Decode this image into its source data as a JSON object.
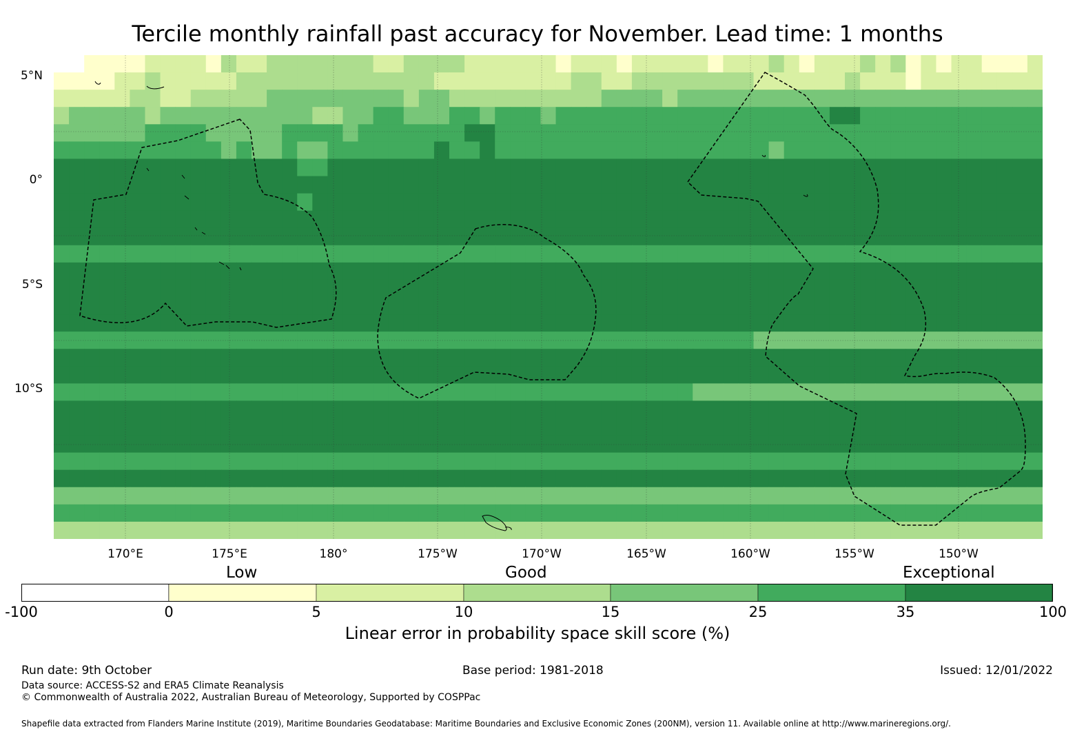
{
  "title": "Tercile monthly rainfall past accuracy for November. Lead time: 1 months",
  "map": {
    "lat_labels": [
      "5°N",
      "0°",
      "5°S",
      "10°S"
    ],
    "lon_labels": [
      "170°E",
      "175°E",
      "180°",
      "175°W",
      "170°W",
      "165°W",
      "160°W",
      "155°W",
      "150°W"
    ],
    "field_description_rows": [
      "00111122221322333333322333322222212221222221222321222323121221112",
      "11112232222233333333333332222222223322333333332222223222122222222",
      "22222332233333444444444344333333333344443444444444444444444444444",
      "34444434444444444334455444554555455555555555555555566555555555555",
      "44444455554444455554555555566555555555555555555555555555555555555",
      "55555555555454454455555556556555555555555555555455555555555555555",
      "66666666666666665566666666666666666666666666666666666666666666666",
      "66666666666666666666666666666666666666666666666666666666666666666",
      "66666666666666665666666666666666666666666666666666666666666666666",
      "66666666666666666666666666666666666666666666666666666666666666666",
      "66666666666666666666666666666666666666666666666666666666666666666",
      "55555555555555555555555555555555555555555555555555555555555555555",
      "66666666666666666666666666666666666666666666666666666666666666666",
      "66666666666666666666666666666666666666666666666666666666666666666",
      "66666666666666666666666666666666666666666666666666666666666666666",
      "66666666666666666666666666666666666666666666666666666666666666666",
      "55555555555555555555555555555555555555555555554444444444444444444",
      "66666666666666666666666666666666666666666666666666666666666666666",
      "66666666666666666666666666666666666666666666666666666666666666666",
      "55555555555555555555555555555555555555555544444444444444444444444",
      "66666666666666666666666666666666666666666666666666666666666666666",
      "66666666666666666666666666666666666666666666666666666666666666666",
      "66666666666666666666666666666666666666666666666666666666666666666",
      "55555555555555555555555555555555555555555555555555555555555555555",
      "66666666666666666666666666666666666666666666666666666666666666666",
      "44444444444444444444444444444444444444444444444444444444444444444",
      "55555555555555555555555555555555555555555555555555555555555555555",
      "33333333333333333333333333333333333333333333333333333333333333333"
    ],
    "colors": {
      "c0": "#ffffff",
      "c1": "#ffffcc",
      "c2": "#d9f0a3",
      "c3": "#addd8e",
      "c4": "#78c679",
      "c5": "#41ab5d",
      "c6": "#238443",
      "line": "#000000"
    }
  },
  "colorbar": {
    "category_labels": [
      "Low",
      "Good",
      "Exceptional"
    ],
    "ticks": [
      "-100",
      "0",
      "5",
      "10",
      "15",
      "25",
      "35",
      "100"
    ],
    "colors": [
      "#ffffff",
      "#ffffcc",
      "#d9f0a3",
      "#addd8e",
      "#78c679",
      "#41ab5d",
      "#238443"
    ],
    "label": "Linear error in probability space skill score (%)"
  },
  "footer": {
    "run_date": "Run date: 9th October",
    "base_period": "Base period: 1981-2018",
    "issued": "Issued: 12/01/2022",
    "data_source": "Data source: ACCESS-S2 and ERA5 Climate Reanalysis",
    "copyright": "© Commonwealth of Australia 2022, Australian Bureau of Meteorology, Supported by COSPPac",
    "shapefile": "Shapefile data extracted from Flanders Marine Institute (2019), Maritime Boundaries Geodatabase: Maritime Boundaries and Exclusive Economic Zones (200NM), version 11. Available online at http://www.marineregions.org/."
  }
}
